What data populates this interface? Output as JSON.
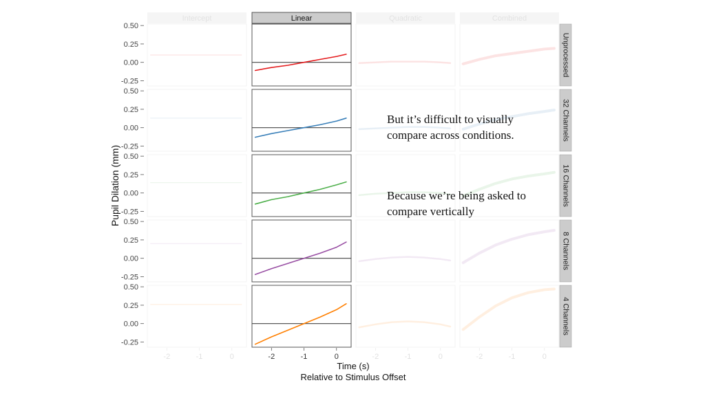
{
  "chart_data": {
    "type": "line",
    "layout": "facet-grid",
    "ylabel": "Pupil Dilation (mm)",
    "xlabel": "Time (s)",
    "xlabel_sub": "Relative to Stimulus Offset",
    "columns": [
      "Intercept",
      "Linear",
      "Quadratic",
      "Combined"
    ],
    "highlighted_column": "Linear",
    "rows": [
      "Unprocessed",
      "32 Channels",
      "16 Channels",
      "8 Channels",
      "4 Channels"
    ],
    "row_colors": [
      "#e41a1c",
      "#377eb8",
      "#4daf4a",
      "#984ea3",
      "#ff7f00"
    ],
    "x_ticks": [
      -2,
      -1,
      0
    ],
    "xlim": [
      -2.6,
      0.45
    ],
    "y_ticks": [
      0.5,
      0.25,
      0.0,
      -0.25
    ],
    "y_tick_labels": [
      "0.50",
      "0.25",
      "0.00",
      "-0.25"
    ],
    "ylim": [
      -0.32,
      0.52
    ],
    "x": [
      -2.5,
      -2.0,
      -1.5,
      -1.0,
      -0.5,
      0.0,
      0.3
    ],
    "panels": [
      {
        "row": "Unprocessed",
        "Intercept": [
          0.1,
          0.1,
          0.1,
          0.1,
          0.1,
          0.1,
          0.1
        ],
        "Linear": [
          -0.11,
          -0.07,
          -0.04,
          0.0,
          0.04,
          0.08,
          0.11
        ],
        "Quadratic": [
          -0.01,
          0.0,
          0.01,
          0.01,
          0.01,
          0.0,
          -0.01
        ],
        "Combined": [
          -0.02,
          0.04,
          0.09,
          0.12,
          0.15,
          0.18,
          0.19
        ]
      },
      {
        "row": "32 Channels",
        "Intercept": [
          0.13,
          0.13,
          0.13,
          0.13,
          0.13,
          0.13,
          0.13
        ],
        "Linear": [
          -0.13,
          -0.08,
          -0.04,
          0.0,
          0.04,
          0.09,
          0.13
        ],
        "Quadratic": [
          -0.02,
          -0.01,
          0.0,
          0.01,
          0.01,
          0.0,
          -0.01
        ],
        "Combined": [
          -0.02,
          0.05,
          0.11,
          0.15,
          0.19,
          0.22,
          0.24
        ]
      },
      {
        "row": "16 Channels",
        "Intercept": [
          0.14,
          0.14,
          0.14,
          0.14,
          0.14,
          0.14,
          0.14
        ],
        "Linear": [
          -0.15,
          -0.09,
          -0.05,
          0.0,
          0.05,
          0.11,
          0.15
        ],
        "Quadratic": [
          -0.03,
          -0.01,
          0.0,
          0.01,
          0.01,
          0.0,
          -0.02
        ],
        "Combined": [
          -0.04,
          0.05,
          0.13,
          0.19,
          0.23,
          0.26,
          0.28
        ]
      },
      {
        "row": "8 Channels",
        "Intercept": [
          0.2,
          0.2,
          0.2,
          0.2,
          0.2,
          0.2,
          0.2
        ],
        "Linear": [
          -0.22,
          -0.14,
          -0.07,
          0.0,
          0.07,
          0.15,
          0.22
        ],
        "Quadratic": [
          -0.04,
          -0.01,
          0.01,
          0.02,
          0.01,
          -0.01,
          -0.03
        ],
        "Combined": [
          -0.06,
          0.07,
          0.18,
          0.26,
          0.32,
          0.36,
          0.38
        ]
      },
      {
        "row": "4 Channels",
        "Intercept": [
          0.26,
          0.26,
          0.26,
          0.26,
          0.26,
          0.26,
          0.26
        ],
        "Linear": [
          -0.28,
          -0.18,
          -0.09,
          0.0,
          0.09,
          0.19,
          0.27
        ],
        "Quadratic": [
          -0.05,
          -0.01,
          0.02,
          0.03,
          0.02,
          -0.01,
          -0.04
        ],
        "Combined": [
          -0.08,
          0.09,
          0.24,
          0.35,
          0.42,
          0.46,
          0.47
        ]
      }
    ]
  },
  "annotations": [
    "But it’s difficult to visually compare across conditions.",
    "Because we’re being asked to compare vertically"
  ]
}
